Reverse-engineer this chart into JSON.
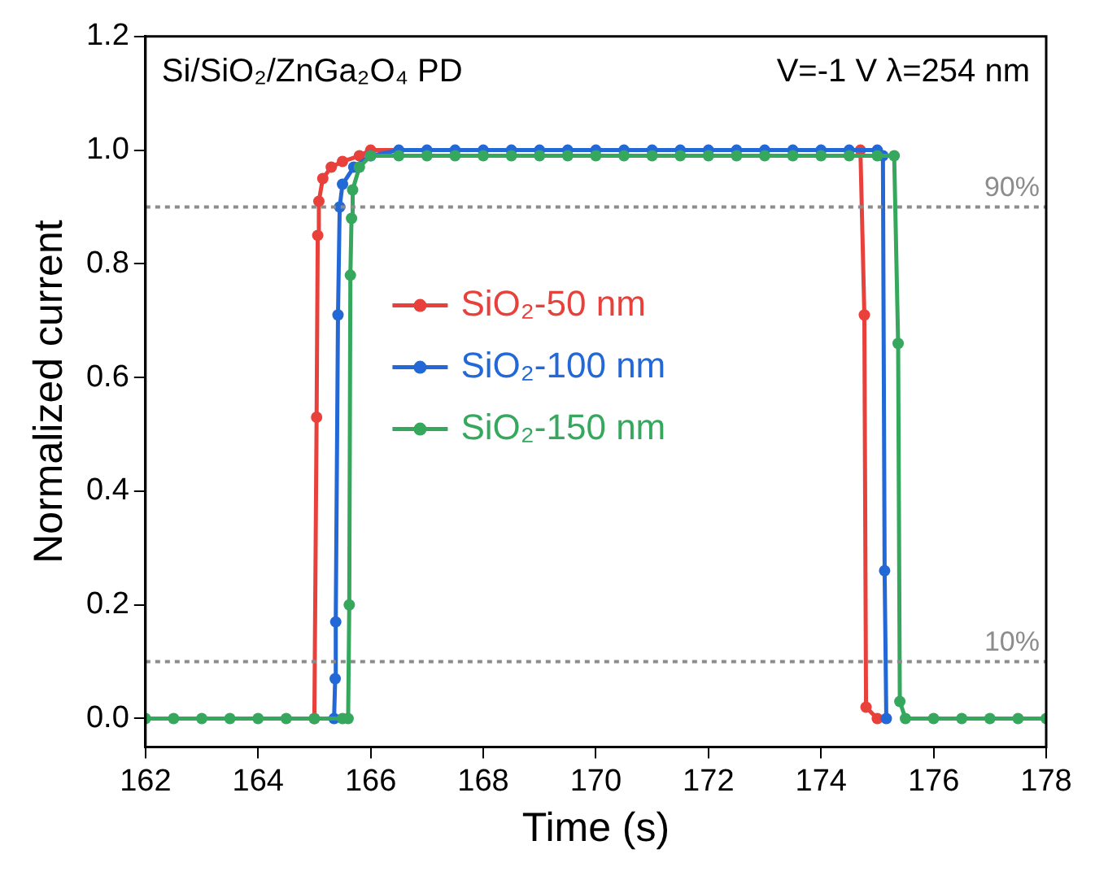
{
  "chart_data": {
    "type": "line",
    "xlabel": "Time (s)",
    "ylabel": "Normalized current",
    "annotations": [
      "Si/SiO₂/ZnGa₂O₄ PD",
      "V=-1 V λ=254 nm"
    ],
    "xlim": [
      162,
      178
    ],
    "xticks": [
      162,
      164,
      166,
      168,
      170,
      172,
      174,
      176,
      178
    ],
    "ylim": [
      -0.05,
      1.2
    ],
    "yticks": [
      {
        "value": 0,
        "label": "0.0"
      },
      {
        "value": 0.2,
        "label": "0.2"
      },
      {
        "value": 0.4,
        "label": "0.4"
      },
      {
        "value": 0.6,
        "label": "0.6"
      },
      {
        "value": 0.8,
        "label": "0.8"
      },
      {
        "value": 1,
        "label": "1.0"
      },
      {
        "value": 1.2,
        "label": "1.2"
      }
    ],
    "grid": false,
    "legend": "center",
    "marker": "circle",
    "line_style": "solid",
    "ref_lines": [
      {
        "axis": "y",
        "value": 0.9,
        "label": "90%",
        "color": "#8c8c8c",
        "line_style": "dotted"
      },
      {
        "axis": "y",
        "value": 0.1,
        "label": "10%",
        "color": "#8c8c8c",
        "line_style": "dotted"
      }
    ],
    "series": [
      {
        "name": "SiO₂-50 nm",
        "color": "#e8413c",
        "x": [
          165,
          165.04,
          165.06,
          165.08,
          165.15,
          165.3,
          165.5,
          165.8,
          166,
          174.7,
          174.77,
          174.8,
          175
        ],
        "values": [
          0,
          0.53,
          0.85,
          0.91,
          0.95,
          0.97,
          0.98,
          0.99,
          1,
          1,
          0.71,
          0.02,
          0
        ]
      },
      {
        "name": "SiO₂-100 nm",
        "color": "#2268d6",
        "x": [
          165.35,
          165.37,
          165.38,
          165.42,
          165.45,
          165.5,
          165.7,
          166,
          166.5,
          167,
          167.5,
          168,
          168.5,
          169,
          169.5,
          170,
          170.5,
          171,
          171.5,
          172,
          172.5,
          173,
          173.5,
          174,
          174.5,
          175,
          175.1,
          175.13,
          175.16
        ],
        "values": [
          0,
          0.07,
          0.17,
          0.71,
          0.9,
          0.94,
          0.97,
          0.99,
          1,
          1,
          1,
          1,
          1,
          1,
          1,
          1,
          1,
          1,
          1,
          1,
          1,
          1,
          1,
          1,
          1,
          1,
          0.99,
          0.26,
          0
        ]
      },
      {
        "name": "SiO₂-150 nm",
        "color": "#35a85e",
        "x": [
          162,
          162.5,
          163,
          163.5,
          164,
          164.5,
          165,
          165.5,
          165.6,
          165.62,
          165.64,
          165.66,
          165.68,
          165.8,
          166,
          166.5,
          167,
          167.5,
          168,
          168.5,
          169,
          169.5,
          170,
          170.5,
          171,
          171.5,
          172,
          172.5,
          173,
          173.5,
          174,
          174.5,
          175,
          175.3,
          175.37,
          175.4,
          175.5,
          176,
          176.5,
          177,
          177.5,
          178
        ],
        "values": [
          0,
          0,
          0,
          0,
          0,
          0,
          0,
          0,
          0,
          0.2,
          0.78,
          0.88,
          0.93,
          0.97,
          0.99,
          0.99,
          0.99,
          0.99,
          0.99,
          0.99,
          0.99,
          0.99,
          0.99,
          0.99,
          0.99,
          0.99,
          0.99,
          0.99,
          0.99,
          0.99,
          0.99,
          0.99,
          0.99,
          0.99,
          0.66,
          0.03,
          0,
          0,
          0,
          0,
          0,
          0
        ]
      }
    ]
  }
}
